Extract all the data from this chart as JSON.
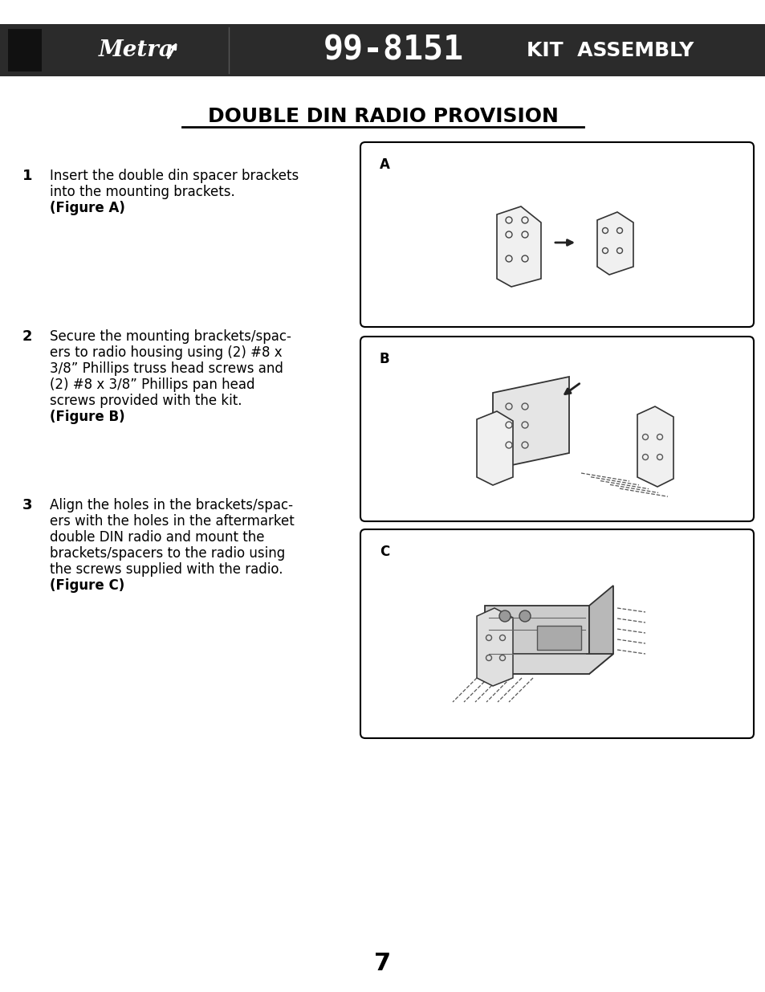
{
  "bg_color": "#ffffff",
  "header_bg": "#2b2b2b",
  "header_text_color": "#ffffff",
  "header_model": "99-8151",
  "header_subtitle": "KIT  ASSEMBLY",
  "page_title": "DOUBLE DIN RADIO PROVISION",
  "steps": [
    {
      "number": "1",
      "text": "Insert the double din spacer brackets\ninto the mounting brackets.\n(Figure A)",
      "figure_label": "A"
    },
    {
      "number": "2",
      "text": "Secure the mounting brackets/spac-\ners to radio housing using (2) #8 x\n3/8” Phillips truss head screws and\n(2) #8 x 3/8” Phillips pan head\nscrews provided with the kit.\n(Figure B)",
      "figure_label": "B"
    },
    {
      "number": "3",
      "text": "Align the holes in the brackets/spac-\ners with the holes in the aftermarket\ndouble DIN radio and mount the\nbrackets/spacers to the radio using\nthe screws supplied with the radio.\n(Figure C)",
      "figure_label": "C"
    }
  ],
  "page_number": "7",
  "figure_box_color": "#000000",
  "figure_box_fill": "#ffffff",
  "text_color": "#000000",
  "step_bold_parts": [
    "(Figure A)",
    "(Figure B)",
    "(Figure C)"
  ]
}
